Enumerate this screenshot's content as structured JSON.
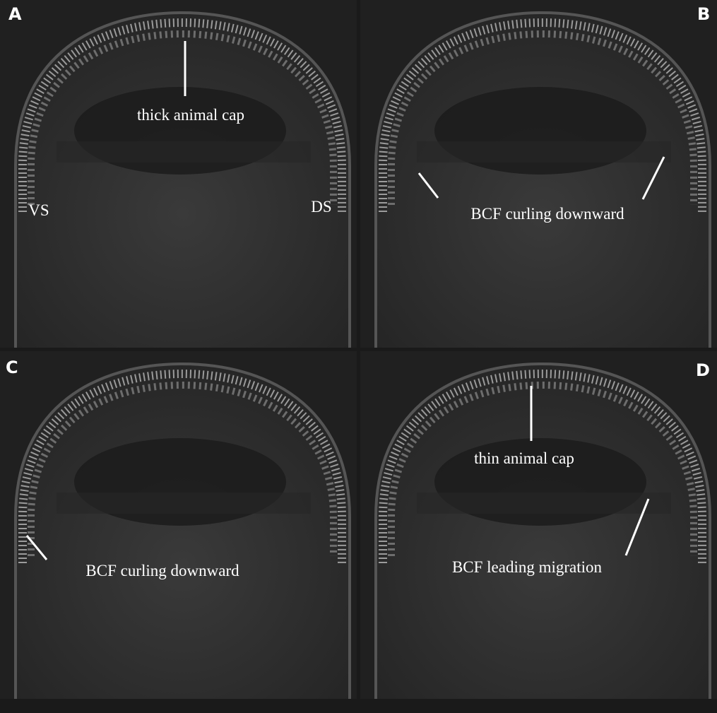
{
  "panels": [
    {
      "letter": "A",
      "labels": [
        "thick animal cap",
        "VS",
        "DS"
      ]
    },
    {
      "letter": "B",
      "labels": [
        "BCF curling downward"
      ]
    },
    {
      "letter": "C",
      "labels": [
        "BCF curling downward"
      ]
    },
    {
      "letter": "D",
      "labels": [
        "thin animal cap",
        "BCF leading migration"
      ]
    }
  ]
}
